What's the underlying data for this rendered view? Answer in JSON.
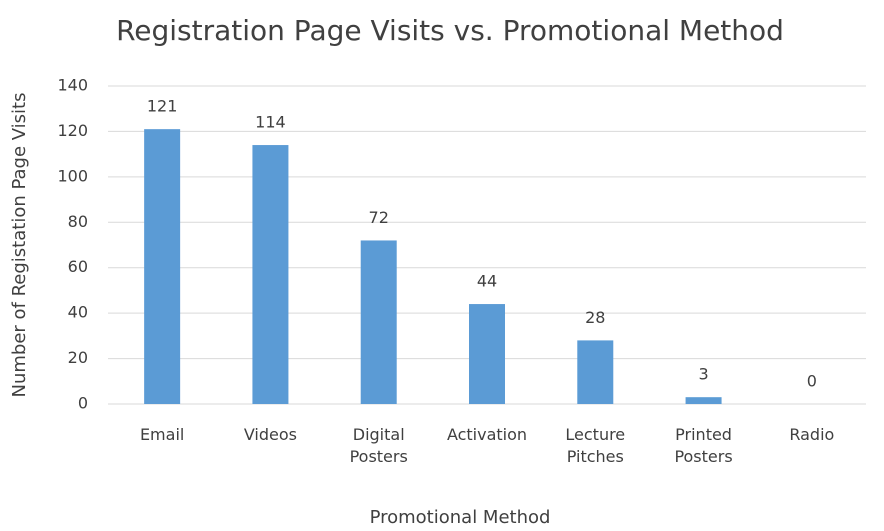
{
  "chart_data": {
    "type": "bar",
    "title": "Registration Page Visits vs. Promotional Method",
    "x_label": "Promotional Method",
    "y_label": "Number of Registation Page Visits",
    "categories": [
      "Email",
      "Videos",
      "Digital Posters",
      "Activation",
      "Lecture Pitches",
      "Printed Posters",
      "Radio"
    ],
    "values": [
      121,
      114,
      72,
      44,
      28,
      3,
      0
    ],
    "color": "#5b9bd5",
    "ylim": [
      0,
      140
    ],
    "yticks": [
      0,
      20,
      40,
      60,
      80,
      100,
      120,
      140
    ],
    "grid": true
  }
}
